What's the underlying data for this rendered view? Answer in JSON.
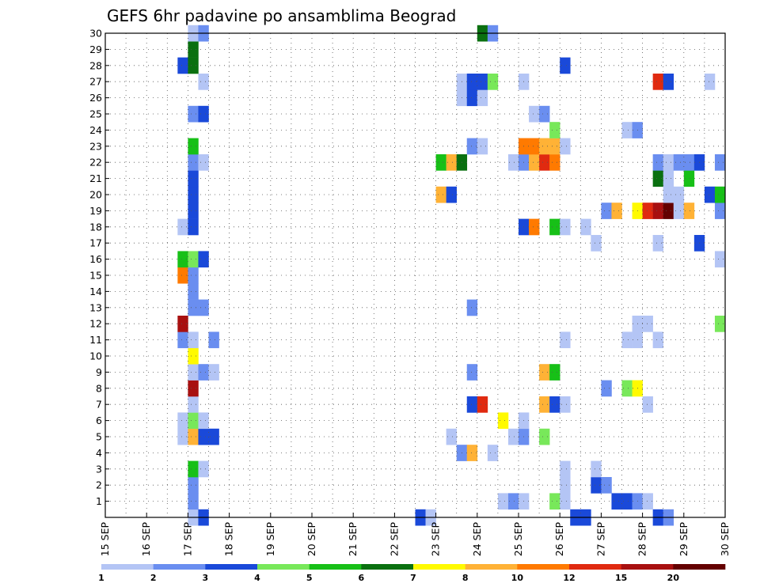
{
  "chart_data": {
    "type": "heatmap",
    "title": "GEFS 6hr padavine po ansamblima Beograd",
    "xlabel": "",
    "ylabel": "",
    "x_ticks": [
      "15 SEP",
      "16 SEP",
      "17 SEP",
      "18 SEP",
      "19 SEP",
      "20 SEP",
      "21 SEP",
      "22 SEP",
      "23 SEP",
      "24 SEP",
      "25 SEP",
      "26 SEP",
      "27 SEP",
      "28 SEP",
      "29 SEP",
      "30 SEP"
    ],
    "y_ticks": [
      "1",
      "2",
      "3",
      "4",
      "5",
      "6",
      "7",
      "8",
      "9",
      "10",
      "11",
      "12",
      "13",
      "14",
      "15",
      "16",
      "17",
      "18",
      "19",
      "20",
      "21",
      "22",
      "23",
      "24",
      "25",
      "26",
      "27",
      "28",
      "29",
      "30"
    ],
    "xlim": [
      0,
      60
    ],
    "ylim": [
      0,
      30
    ],
    "x_unit_note": "6-hour steps from 15 SEP",
    "grid": true,
    "legend_position": "bottom",
    "levels": [
      "1",
      "2",
      "3",
      "4",
      "5",
      "6",
      "7",
      "8",
      "10",
      "12",
      "15",
      "20"
    ],
    "colors": [
      "#b4c5f5",
      "#6a8ef0",
      "#1a49d9",
      "#78e85a",
      "#17c017",
      "#0a7010",
      "#fffa00",
      "#ffb236",
      "#ff7a00",
      "#e02a10",
      "#a81010",
      "#640000"
    ],
    "cells": [
      [
        0,
        8,
        0
      ],
      [
        0,
        9,
        2
      ],
      [
        0,
        30,
        2
      ],
      [
        0,
        31,
        0
      ],
      [
        0,
        45,
        2
      ],
      [
        0,
        46,
        2
      ],
      [
        0,
        53,
        2
      ],
      [
        0,
        54,
        1
      ],
      [
        1,
        8,
        1
      ],
      [
        1,
        38,
        0
      ],
      [
        1,
        39,
        1
      ],
      [
        1,
        40,
        0
      ],
      [
        1,
        43,
        3
      ],
      [
        1,
        44,
        0
      ],
      [
        1,
        49,
        2
      ],
      [
        1,
        50,
        2
      ],
      [
        1,
        51,
        1
      ],
      [
        1,
        52,
        0
      ],
      [
        2,
        8,
        1
      ],
      [
        2,
        44,
        0
      ],
      [
        2,
        47,
        2
      ],
      [
        2,
        48,
        1
      ],
      [
        3,
        8,
        4
      ],
      [
        3,
        9,
        0
      ],
      [
        3,
        44,
        0
      ],
      [
        3,
        47,
        0
      ],
      [
        4,
        34,
        1
      ],
      [
        4,
        35,
        7
      ],
      [
        4,
        37,
        0
      ],
      [
        5,
        7,
        0
      ],
      [
        5,
        8,
        7
      ],
      [
        5,
        9,
        2
      ],
      [
        5,
        10,
        2
      ],
      [
        5,
        33,
        0
      ],
      [
        5,
        39,
        0
      ],
      [
        5,
        40,
        1
      ],
      [
        5,
        42,
        3
      ],
      [
        6,
        7,
        0
      ],
      [
        6,
        8,
        3
      ],
      [
        6,
        9,
        0
      ],
      [
        6,
        38,
        6
      ],
      [
        6,
        40,
        0
      ],
      [
        7,
        8,
        0
      ],
      [
        7,
        35,
        2
      ],
      [
        7,
        36,
        9
      ],
      [
        7,
        42,
        7
      ],
      [
        7,
        43,
        2
      ],
      [
        7,
        44,
        0
      ],
      [
        7,
        52,
        0
      ],
      [
        8,
        8,
        10
      ],
      [
        8,
        48,
        1
      ],
      [
        8,
        50,
        3
      ],
      [
        8,
        51,
        6
      ],
      [
        9,
        8,
        0
      ],
      [
        9,
        9,
        1
      ],
      [
        9,
        10,
        0
      ],
      [
        9,
        35,
        1
      ],
      [
        9,
        42,
        7
      ],
      [
        9,
        43,
        4
      ],
      [
        10,
        8,
        6
      ],
      [
        11,
        7,
        1
      ],
      [
        11,
        8,
        0
      ],
      [
        11,
        10,
        1
      ],
      [
        11,
        44,
        0
      ],
      [
        11,
        50,
        0
      ],
      [
        11,
        51,
        0
      ],
      [
        11,
        53,
        0
      ],
      [
        12,
        7,
        10
      ],
      [
        12,
        51,
        0
      ],
      [
        12,
        52,
        0
      ],
      [
        12,
        59,
        3
      ],
      [
        13,
        8,
        1
      ],
      [
        13,
        9,
        1
      ],
      [
        13,
        35,
        1
      ],
      [
        14,
        8,
        1
      ],
      [
        15,
        7,
        8
      ],
      [
        15,
        8,
        1
      ],
      [
        16,
        7,
        4
      ],
      [
        16,
        8,
        3
      ],
      [
        16,
        9,
        2
      ],
      [
        16,
        59,
        0
      ],
      [
        17,
        47,
        0
      ],
      [
        17,
        53,
        0
      ],
      [
        17,
        57,
        2
      ],
      [
        18,
        7,
        0
      ],
      [
        18,
        8,
        2
      ],
      [
        18,
        40,
        2
      ],
      [
        18,
        41,
        8
      ],
      [
        18,
        43,
        4
      ],
      [
        18,
        44,
        0
      ],
      [
        18,
        46,
        0
      ],
      [
        19,
        8,
        2
      ],
      [
        19,
        48,
        1
      ],
      [
        19,
        49,
        7
      ],
      [
        19,
        51,
        6
      ],
      [
        19,
        52,
        9
      ],
      [
        19,
        53,
        10
      ],
      [
        19,
        54,
        11
      ],
      [
        19,
        55,
        0
      ],
      [
        19,
        56,
        7
      ],
      [
        19,
        59,
        1
      ],
      [
        20,
        8,
        2
      ],
      [
        20,
        32,
        7
      ],
      [
        20,
        33,
        2
      ],
      [
        20,
        54,
        0
      ],
      [
        20,
        55,
        0
      ],
      [
        20,
        58,
        2
      ],
      [
        20,
        59,
        4
      ],
      [
        21,
        8,
        2
      ],
      [
        21,
        53,
        5
      ],
      [
        21,
        54,
        0
      ],
      [
        21,
        56,
        4
      ],
      [
        22,
        8,
        1
      ],
      [
        22,
        9,
        0
      ],
      [
        22,
        32,
        4
      ],
      [
        22,
        33,
        7
      ],
      [
        22,
        34,
        5
      ],
      [
        22,
        39,
        0
      ],
      [
        22,
        40,
        1
      ],
      [
        22,
        41,
        7
      ],
      [
        22,
        42,
        9
      ],
      [
        22,
        43,
        8
      ],
      [
        22,
        53,
        1
      ],
      [
        22,
        54,
        0
      ],
      [
        22,
        55,
        1
      ],
      [
        22,
        56,
        1
      ],
      [
        22,
        57,
        2
      ],
      [
        22,
        59,
        1
      ],
      [
        23,
        8,
        4
      ],
      [
        23,
        35,
        1
      ],
      [
        23,
        36,
        0
      ],
      [
        23,
        40,
        8
      ],
      [
        23,
        41,
        8
      ],
      [
        23,
        42,
        7
      ],
      [
        23,
        43,
        7
      ],
      [
        23,
        44,
        0
      ],
      [
        24,
        43,
        3
      ],
      [
        24,
        50,
        0
      ],
      [
        24,
        51,
        1
      ],
      [
        25,
        8,
        1
      ],
      [
        25,
        9,
        2
      ],
      [
        25,
        41,
        0
      ],
      [
        25,
        42,
        1
      ],
      [
        26,
        34,
        0
      ],
      [
        26,
        35,
        2
      ],
      [
        26,
        36,
        0
      ],
      [
        27,
        9,
        0
      ],
      [
        27,
        34,
        0
      ],
      [
        27,
        35,
        2
      ],
      [
        27,
        36,
        2
      ],
      [
        27,
        37,
        3
      ],
      [
        27,
        40,
        0
      ],
      [
        27,
        53,
        9
      ],
      [
        27,
        54,
        2
      ],
      [
        27,
        58,
        0
      ],
      [
        28,
        7,
        2
      ],
      [
        28,
        8,
        5
      ],
      [
        28,
        44,
        2
      ],
      [
        29,
        8,
        5
      ],
      [
        30,
        8,
        0
      ],
      [
        30,
        9,
        1
      ],
      [
        30,
        36,
        5
      ],
      [
        30,
        37,
        1
      ]
    ]
  }
}
